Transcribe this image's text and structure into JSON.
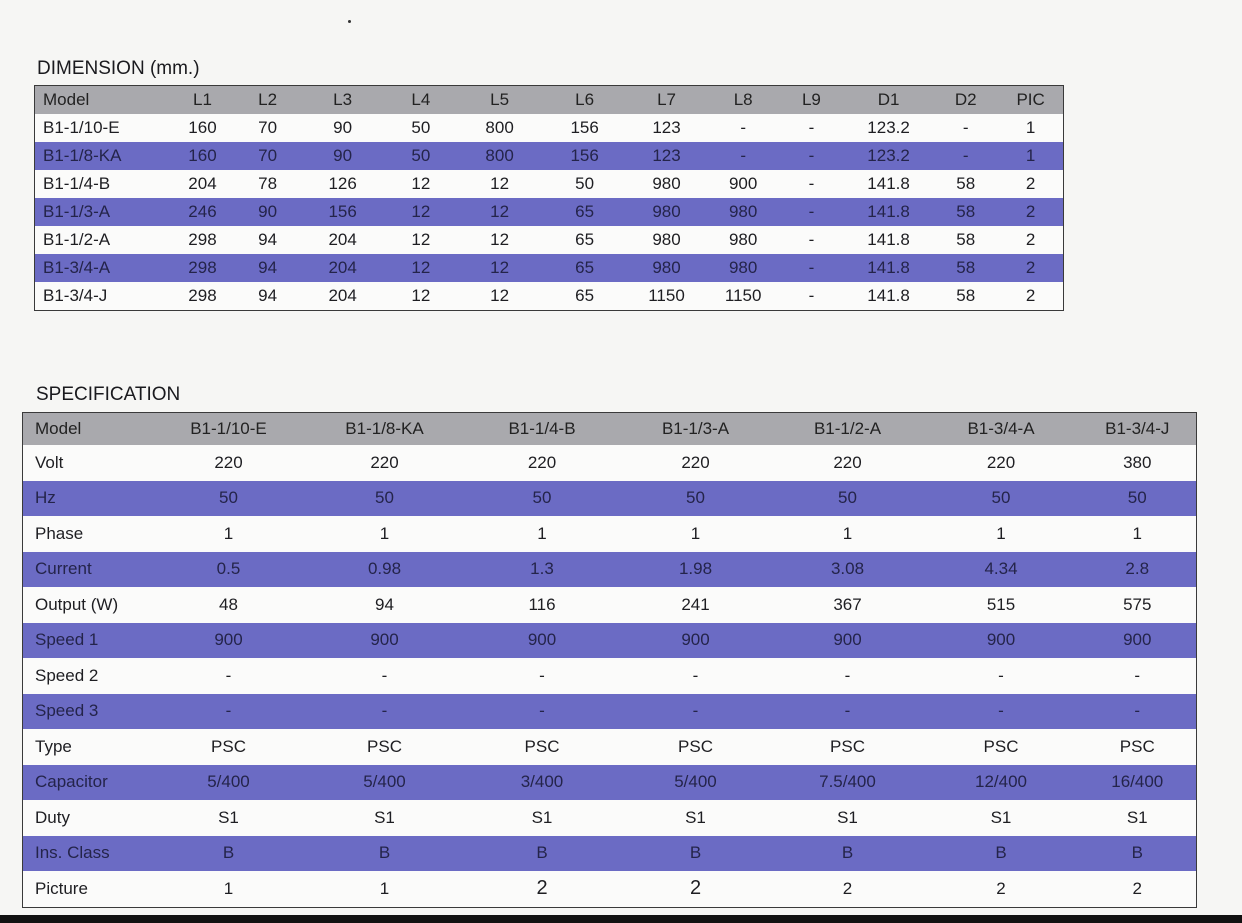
{
  "dimension": {
    "title": "DIMENSION (mm.)",
    "headers": [
      "Model",
      "L1",
      "L2",
      "L3",
      "L4",
      "L5",
      "L6",
      "L7",
      "L8",
      "L9",
      "D1",
      "D2",
      "PIC"
    ],
    "rows": [
      [
        "B1-1/10-E",
        "160",
        "70",
        "90",
        "50",
        "800",
        "156",
        "123",
        "-",
        "-",
        "123.2",
        "-",
        "1"
      ],
      [
        "B1-1/8-KA",
        "160",
        "70",
        "90",
        "50",
        "800",
        "156",
        "123",
        "-",
        "-",
        "123.2",
        "-",
        "1"
      ],
      [
        "B1-1/4-B",
        "204",
        "78",
        "126",
        "12",
        "12",
        "50",
        "980",
        "900",
        "-",
        "141.8",
        "58",
        "2"
      ],
      [
        "B1-1/3-A",
        "246",
        "90",
        "156",
        "12",
        "12",
        "65",
        "980",
        "980",
        "-",
        "141.8",
        "58",
        "2"
      ],
      [
        "B1-1/2-A",
        "298",
        "94",
        "204",
        "12",
        "12",
        "65",
        "980",
        "980",
        "-",
        "141.8",
        "58",
        "2"
      ],
      [
        "B1-3/4-A",
        "298",
        "94",
        "204",
        "12",
        "12",
        "65",
        "980",
        "980",
        "-",
        "141.8",
        "58",
        "2"
      ],
      [
        "B1-3/4-J",
        "298",
        "94",
        "204",
        "12",
        "12",
        "65",
        "1150",
        "1150",
        "-",
        "141.8",
        "58",
        "2"
      ]
    ]
  },
  "specification": {
    "title": "SPECIFICATION",
    "headers": [
      "Model",
      "B1-1/10-E",
      "B1-1/8-KA",
      "B1-1/4-B",
      "B1-1/3-A",
      "B1-1/2-A",
      "B1-3/4-A",
      "B1-3/4-J"
    ],
    "rows": [
      [
        "Volt",
        "220",
        "220",
        "220",
        "220",
        "220",
        "220",
        "380"
      ],
      [
        "Hz",
        "50",
        "50",
        "50",
        "50",
        "50",
        "50",
        "50"
      ],
      [
        "Phase",
        "1",
        "1",
        "1",
        "1",
        "1",
        "1",
        "1"
      ],
      [
        "Current",
        "0.5",
        "0.98",
        "1.3",
        "1.98",
        "3.08",
        "4.34",
        "2.8"
      ],
      [
        "Output (W)",
        "48",
        "94",
        "116",
        "241",
        "367",
        "515",
        "575"
      ],
      [
        "Speed 1",
        "900",
        "900",
        "900",
        "900",
        "900",
        "900",
        "900"
      ],
      [
        "Speed 2",
        "-",
        "-",
        "-",
        "-",
        "-",
        "-",
        "-"
      ],
      [
        "Speed 3",
        "-",
        "-",
        "-",
        "-",
        "-",
        "-",
        "-"
      ],
      [
        "Type",
        "PSC",
        "PSC",
        "PSC",
        "PSC",
        "PSC",
        "PSC",
        "PSC"
      ],
      [
        "Capacitor",
        "5/400",
        "5/400",
        "3/400",
        "5/400",
        "7.5/400",
        "12/400",
        "16/400"
      ],
      [
        "Duty",
        "S1",
        "S1",
        "S1",
        "S1",
        "S1",
        "S1",
        "S1"
      ],
      [
        "Ins. Class",
        "B",
        "B",
        "B",
        "B",
        "B",
        "B",
        "B"
      ],
      [
        "Picture",
        "1",
        "1",
        "2",
        "2",
        "2",
        "2",
        "2"
      ]
    ]
  },
  "colors": {
    "header_gray": "#a9a9ad",
    "band_purple": "#6b6bc4",
    "row_white": "#fbfbfa"
  }
}
